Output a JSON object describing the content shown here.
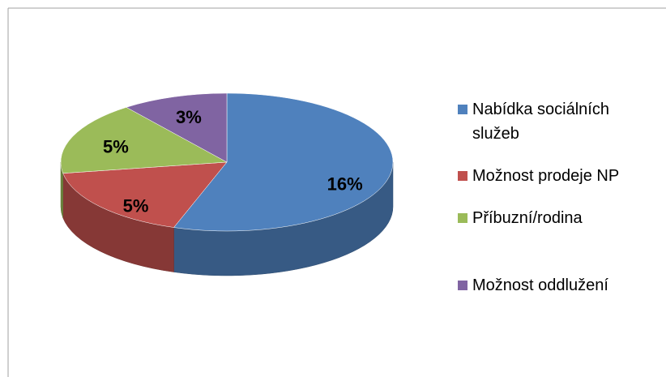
{
  "chart_data": {
    "type": "pie",
    "categories": [
      "Nabídka sociálních služeb",
      "Možnost prodeje NP",
      "Příbuzní/rodina",
      "Možnost oddlužení"
    ],
    "values": [
      16,
      5,
      5,
      3
    ],
    "value_labels": [
      "16%",
      "5%",
      "5%",
      "3%"
    ],
    "colors": [
      "#4f81bd",
      "#c0504d",
      "#9bbb59",
      "#8064a2"
    ],
    "legend": "right"
  }
}
